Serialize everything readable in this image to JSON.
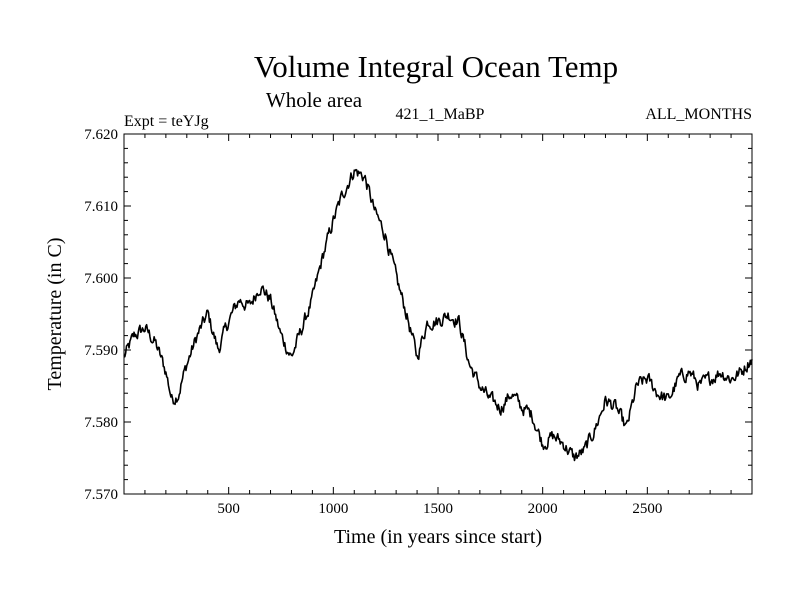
{
  "chart_data": {
    "type": "line",
    "title": "Volume Integral Ocean Temp",
    "subtitle": "Whole area",
    "header_left": "Expt = teYJg",
    "header_center": "421_1_MaBP",
    "header_right": "ALL_MONTHS",
    "xlabel": "Time (in years since start)",
    "ylabel": "Temperature (in C)",
    "xlim": [
      0,
      3000
    ],
    "ylim": [
      7.57,
      7.62
    ],
    "x_ticks": [
      500,
      1000,
      1500,
      2000,
      2500
    ],
    "x_tick_labels": [
      "500",
      "1000",
      "1500",
      "2000",
      "2500"
    ],
    "y_ticks": [
      7.57,
      7.58,
      7.59,
      7.6,
      7.61,
      7.62
    ],
    "y_tick_labels": [
      "7.570",
      "7.580",
      "7.590",
      "7.600",
      "7.610",
      "7.620"
    ],
    "grid": false,
    "series": [
      {
        "name": "Volume integral ocean temperature",
        "x": [
          0,
          50,
          100,
          150,
          200,
          230,
          260,
          300,
          350,
          400,
          450,
          500,
          550,
          600,
          650,
          700,
          750,
          800,
          850,
          900,
          950,
          1000,
          1050,
          1100,
          1150,
          1200,
          1250,
          1300,
          1350,
          1400,
          1450,
          1500,
          1550,
          1600,
          1650,
          1700,
          1750,
          1800,
          1850,
          1900,
          1950,
          2000,
          2050,
          2100,
          2150,
          2200,
          2250,
          2300,
          2350,
          2400,
          2450,
          2500,
          2550,
          2600,
          2650,
          2700,
          2750,
          2800,
          2850,
          2900,
          2950,
          3000
        ],
        "values": [
          7.589,
          7.592,
          7.593,
          7.591,
          7.587,
          7.583,
          7.584,
          7.588,
          7.592,
          7.595,
          7.59,
          7.594,
          7.597,
          7.596,
          7.599,
          7.597,
          7.592,
          7.589,
          7.593,
          7.597,
          7.603,
          7.608,
          7.612,
          7.615,
          7.614,
          7.609,
          7.606,
          7.6,
          7.595,
          7.589,
          7.594,
          7.594,
          7.595,
          7.594,
          7.588,
          7.585,
          7.583,
          7.582,
          7.584,
          7.582,
          7.581,
          7.577,
          7.578,
          7.577,
          7.575,
          7.576,
          7.579,
          7.583,
          7.582,
          7.579,
          7.585,
          7.586,
          7.584,
          7.583,
          7.586,
          7.587,
          7.585,
          7.586,
          7.587,
          7.586,
          7.587,
          7.589
        ]
      }
    ]
  }
}
